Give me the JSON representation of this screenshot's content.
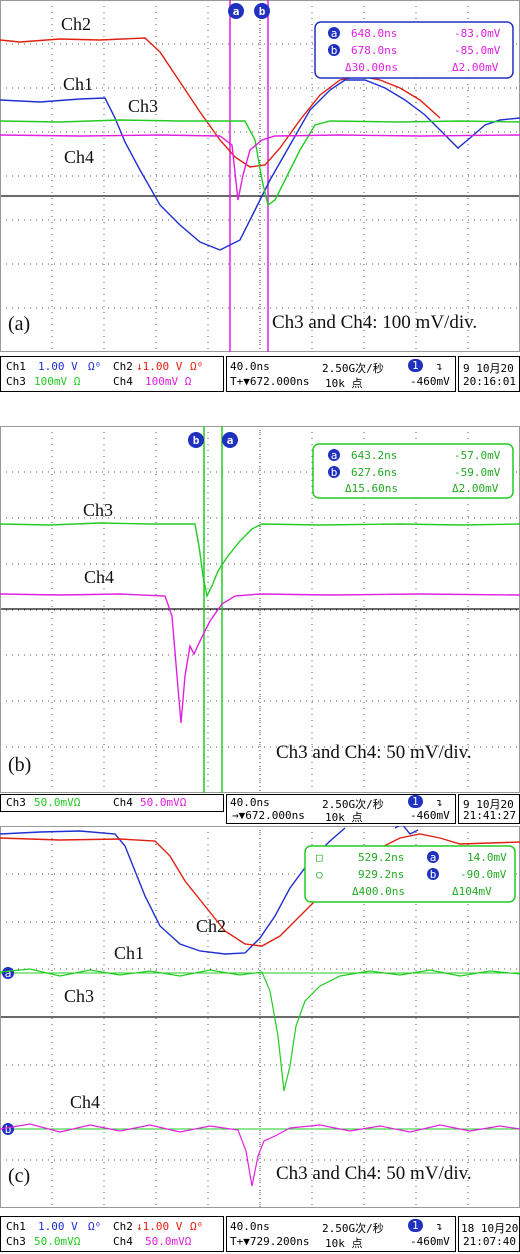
{
  "panels": [
    {
      "caption": "(a)",
      "scale_note": "Ch3 and Ch4: 100 mV/div.",
      "labels": {
        "ch1": "Ch1",
        "ch2": "Ch2",
        "ch3": "Ch3",
        "ch4": "Ch4"
      },
      "cursor_markers": [
        "a",
        "b"
      ],
      "readout": {
        "row1": {
          "marker": "a",
          "time": "648.0ns",
          "volt": "-83.0mV"
        },
        "row2": {
          "marker": "b",
          "time": "678.0ns",
          "volt": "-85.0mV"
        },
        "row3": {
          "time": "Δ30.00ns",
          "volt": "Δ2.00mV"
        }
      },
      "status": {
        "ch1": "Ch1",
        "ch1_val": "1.00 V",
        "ch1_sym": "Ω⁰",
        "ch2": "Ch2",
        "ch2_val": "↓1.00 V",
        "ch2_sym": "Ω⁰",
        "ch3": "Ch3",
        "ch3_val": "100mV Ω",
        "ch4": "Ch4",
        "ch4_val": "100mV Ω",
        "timebase": "40.0ns",
        "trig_pos": "T+▼672.000ns",
        "rate": "2.50G次/秒",
        "points": "10k 点",
        "trig_ch": "1",
        "trig_slope": "↴",
        "trig_level": "-460mV",
        "date": "9 10月20",
        "time": "20:16:01"
      }
    },
    {
      "caption": "(b)",
      "scale_note": "Ch3 and Ch4: 50 mV/div.",
      "labels": {
        "ch3": "Ch3",
        "ch4": "Ch4"
      },
      "cursor_markers": [
        "b",
        "a"
      ],
      "readout": {
        "row1": {
          "marker": "a",
          "time": "643.2ns",
          "volt": "-57.0mV"
        },
        "row2": {
          "marker": "b",
          "time": "627.6ns",
          "volt": "-59.0mV"
        },
        "row3": {
          "time": "Δ15.60ns",
          "volt": "Δ2.00mV"
        }
      },
      "status": {
        "ch3": "Ch3",
        "ch3_val": "50.0mVΩ",
        "ch4": "Ch4",
        "ch4_val": "50.0mVΩ",
        "timebase": "40.0ns",
        "trig_pos": "→▼672.000ns",
        "rate": "2.50G次/秒",
        "points": "10k 点",
        "trig_ch": "1",
        "trig_slope": "↴",
        "trig_level": "-460mV",
        "date": "9 10月20",
        "time": "21:41:27"
      }
    },
    {
      "caption": "(c)",
      "scale_note": "Ch3 and Ch4: 50 mV/div.",
      "labels": {
        "ch1": "Ch1",
        "ch2": "Ch2",
        "ch3": "Ch3",
        "ch4": "Ch4"
      },
      "cursor_markers": [
        "a",
        "b"
      ],
      "readout": {
        "row1": {
          "marker": "□",
          "time": "529.2ns",
          "marker2": "a",
          "volt": "14.0mV"
        },
        "row2": {
          "marker": "○",
          "time": "929.2ns",
          "marker2": "b",
          "volt": "-90.0mV"
        },
        "row3": {
          "time": "Δ400.0ns",
          "volt": "Δ104mV"
        }
      },
      "status": {
        "ch1": "Ch1",
        "ch1_val": "1.00 V",
        "ch1_sym": "Ω⁰",
        "ch2": "Ch2",
        "ch2_val": "↓1.00 V",
        "ch2_sym": "Ω⁰",
        "ch3": "Ch3",
        "ch3_val": "50.0mVΩ",
        "ch4": "Ch4",
        "ch4_val": "50.0mVΩ",
        "timebase": "40.0ns",
        "trig_pos": "T+▼729.200ns",
        "rate": "2.50G次/秒",
        "points": "10k 点",
        "trig_ch": "1",
        "trig_slope": "↴",
        "trig_level": "-460mV",
        "date": "18 10月20",
        "time": "21:07:40"
      }
    }
  ],
  "colors": {
    "ch1": "#1f2fd0",
    "ch2": "#e02010",
    "ch3": "#22cc22",
    "ch4": "#e020e0",
    "grid": "#222222",
    "cursor_a": "#e020e0",
    "cursor_b": "#22cc22"
  }
}
